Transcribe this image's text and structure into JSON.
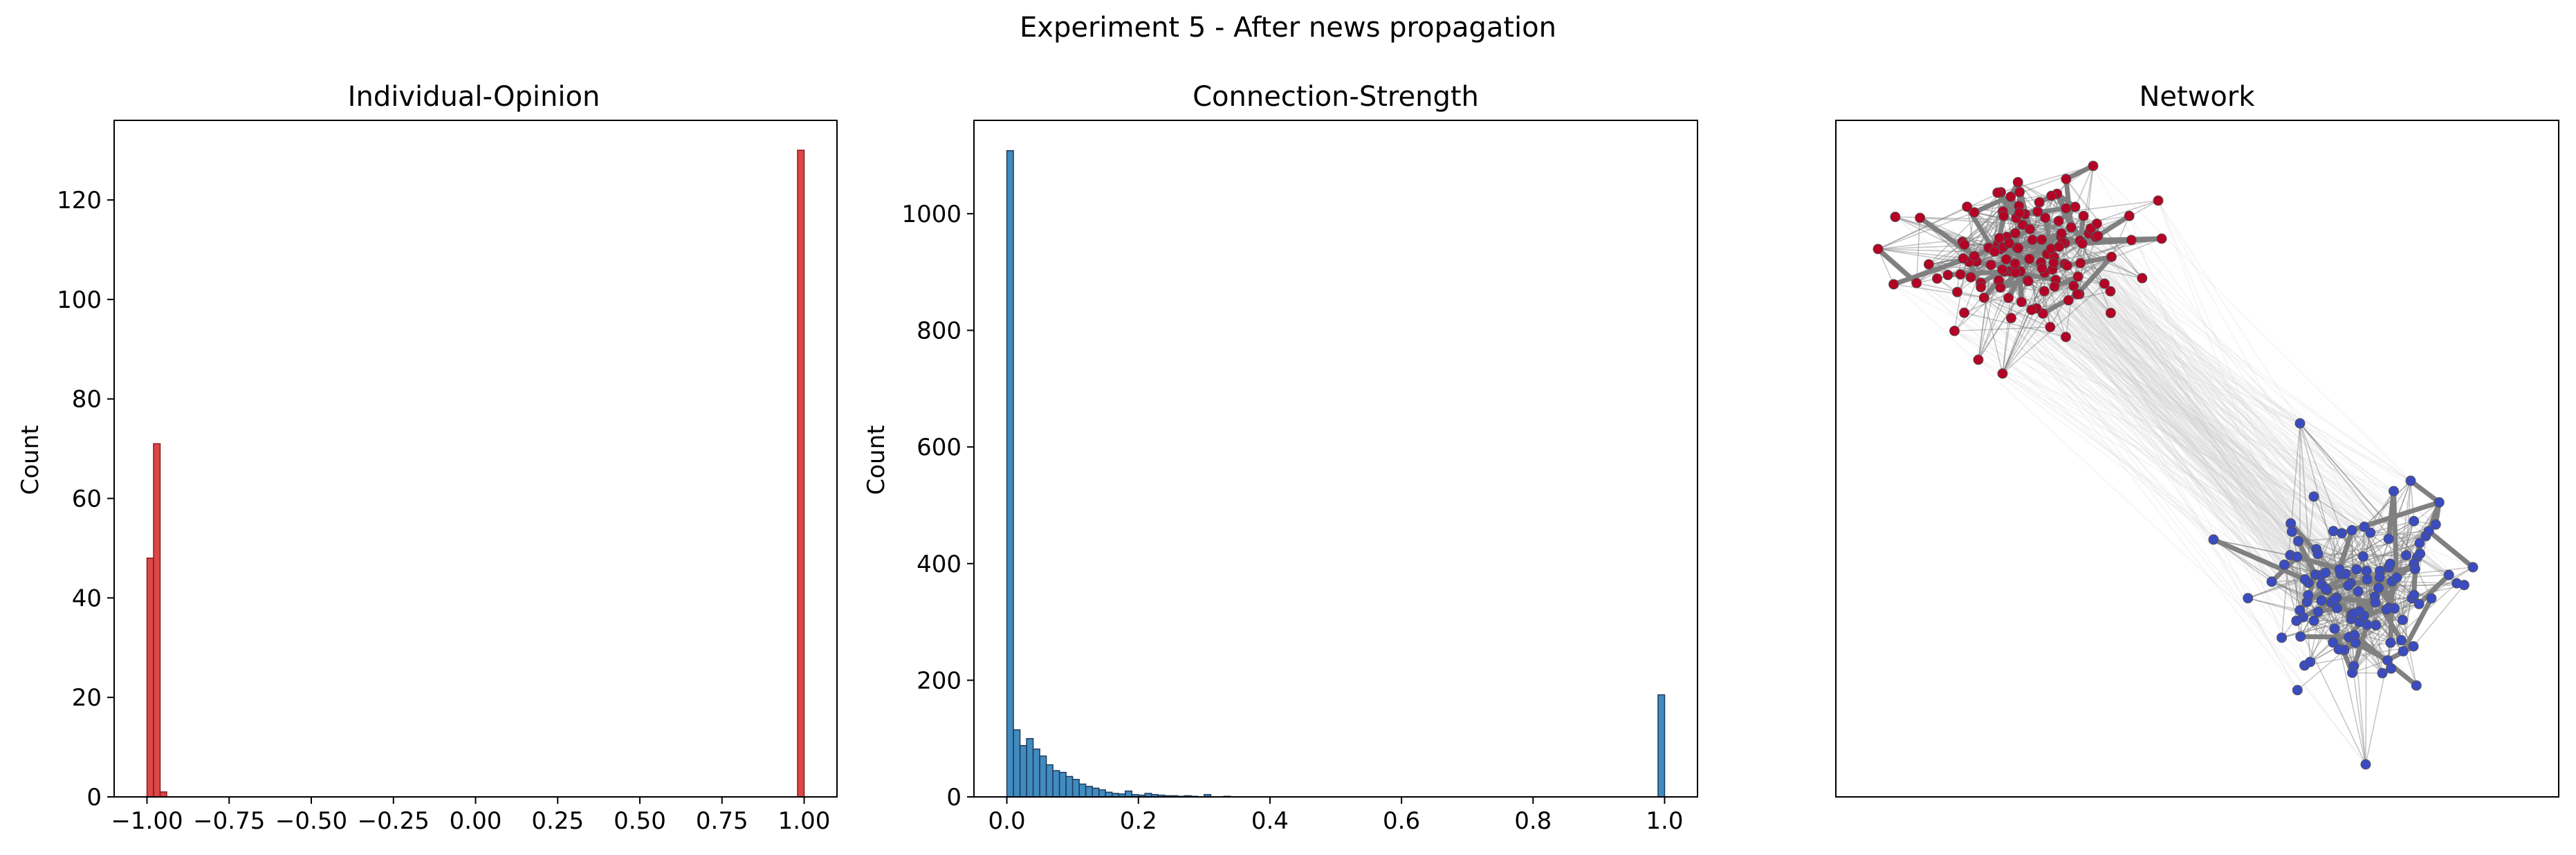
{
  "figure": {
    "title": "Experiment 5 - After news propagation"
  },
  "chart_data": [
    {
      "type": "bar",
      "title": "Individual-Opinion",
      "xlabel": "",
      "ylabel": "Count",
      "xlim": [
        -1.1,
        1.1
      ],
      "ylim": [
        0,
        136
      ],
      "xticks": [
        "−1.00",
        "−0.75",
        "−0.50",
        "−0.25",
        "0.00",
        "0.25",
        "0.50",
        "0.75",
        "1.00"
      ],
      "yticks": [
        "0",
        "20",
        "40",
        "60",
        "80",
        "100",
        "120"
      ],
      "bin_width": 0.02,
      "bins": [
        {
          "x": -1.0,
          "count": 48
        },
        {
          "x": -0.98,
          "count": 71
        },
        {
          "x": -0.96,
          "count": 1
        },
        {
          "x": 0.98,
          "count": 130
        }
      ],
      "color": "#d62728"
    },
    {
      "type": "bar",
      "title": "Connection-Strength",
      "xlabel": "",
      "ylabel": "Count",
      "xlim": [
        -0.05,
        1.05
      ],
      "ylim": [
        0,
        1160
      ],
      "xticks": [
        "0.0",
        "0.2",
        "0.4",
        "0.6",
        "0.8",
        "1.0"
      ],
      "yticks": [
        "0",
        "200",
        "400",
        "600",
        "800",
        "1000"
      ],
      "bin_width": 0.01,
      "bins": [
        {
          "x": 0.0,
          "count": 1108
        },
        {
          "x": 0.01,
          "count": 115
        },
        {
          "x": 0.02,
          "count": 88
        },
        {
          "x": 0.03,
          "count": 100
        },
        {
          "x": 0.04,
          "count": 82
        },
        {
          "x": 0.05,
          "count": 70
        },
        {
          "x": 0.06,
          "count": 55
        },
        {
          "x": 0.07,
          "count": 45
        },
        {
          "x": 0.08,
          "count": 42
        },
        {
          "x": 0.09,
          "count": 35
        },
        {
          "x": 0.1,
          "count": 30
        },
        {
          "x": 0.11,
          "count": 22
        },
        {
          "x": 0.12,
          "count": 18
        },
        {
          "x": 0.13,
          "count": 15
        },
        {
          "x": 0.14,
          "count": 12
        },
        {
          "x": 0.15,
          "count": 8
        },
        {
          "x": 0.16,
          "count": 6
        },
        {
          "x": 0.17,
          "count": 5
        },
        {
          "x": 0.18,
          "count": 10
        },
        {
          "x": 0.19,
          "count": 4
        },
        {
          "x": 0.2,
          "count": 3
        },
        {
          "x": 0.21,
          "count": 6
        },
        {
          "x": 0.22,
          "count": 4
        },
        {
          "x": 0.23,
          "count": 3
        },
        {
          "x": 0.24,
          "count": 2
        },
        {
          "x": 0.25,
          "count": 2
        },
        {
          "x": 0.26,
          "count": 1
        },
        {
          "x": 0.27,
          "count": 2
        },
        {
          "x": 0.28,
          "count": 1
        },
        {
          "x": 0.3,
          "count": 4
        },
        {
          "x": 0.33,
          "count": 1
        },
        {
          "x": 0.99,
          "count": 175
        }
      ],
      "color": "#1f77b4"
    },
    {
      "type": "network",
      "title": "Network",
      "groups": [
        {
          "color": "#b40426",
          "count": 120
        },
        {
          "color": "#3b4cc0",
          "count": 110
        }
      ]
    }
  ]
}
